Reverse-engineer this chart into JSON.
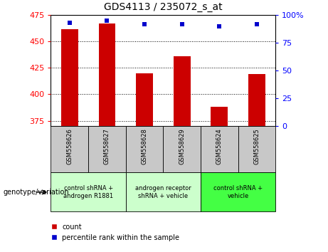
{
  "title": "GDS4113 / 235072_s_at",
  "samples": [
    "GSM558626",
    "GSM558627",
    "GSM558628",
    "GSM558629",
    "GSM558624",
    "GSM558625"
  ],
  "bar_values": [
    462,
    467,
    420,
    436,
    388,
    419
  ],
  "percentile_values": [
    93,
    95,
    92,
    92,
    90,
    92
  ],
  "ylim_left": [
    370,
    475
  ],
  "ylim_right": [
    0,
    100
  ],
  "yticks_left": [
    375,
    400,
    425,
    450,
    475
  ],
  "yticks_right": [
    0,
    25,
    50,
    75,
    100
  ],
  "bar_color": "#CC0000",
  "dot_color": "#0000CC",
  "bar_bottom": 370,
  "group_defs": [
    {
      "start": 0,
      "end": 2,
      "label": "control shRNA +\nandrogen R1881",
      "color": "#CCFFCC"
    },
    {
      "start": 2,
      "end": 4,
      "label": "androgen receptor\nshRNA + vehicle",
      "color": "#CCFFCC"
    },
    {
      "start": 4,
      "end": 6,
      "label": "control shRNA +\nvehicle",
      "color": "#44FF44"
    }
  ],
  "sample_box_color": "#C8C8C8",
  "legend_count_color": "#CC0000",
  "legend_dot_color": "#0000CC",
  "figsize": [
    4.61,
    3.54
  ],
  "dpi": 100
}
